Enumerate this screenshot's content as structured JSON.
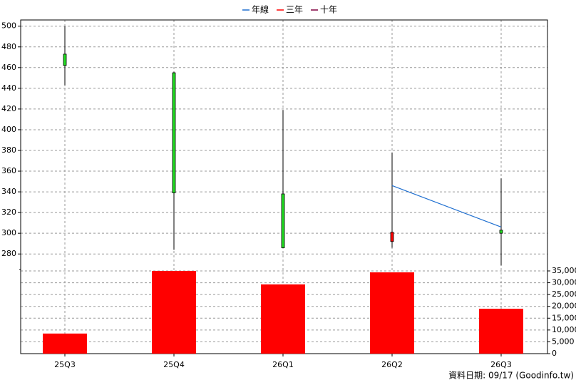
{
  "chart_data": {
    "type": "candlestick",
    "categories": [
      "25Q3",
      "25Q4",
      "26Q1",
      "26Q2",
      "26Q3"
    ],
    "open": [
      473,
      455,
      338,
      292,
      303
    ],
    "high": [
      500,
      456,
      419,
      378,
      353
    ],
    "low": [
      443,
      284,
      286,
      286,
      269
    ],
    "close": [
      462,
      339,
      286,
      301,
      300
    ],
    "up_color": "#ff0000",
    "down_color": "#22dd22",
    "series": [
      {
        "name": "年線",
        "color": "#1f6fd0",
        "values": [
          null,
          null,
          null,
          346,
          306
        ]
      },
      {
        "name": "三年",
        "color": "#ff0000",
        "values": [
          null,
          null,
          null,
          null,
          null
        ]
      },
      {
        "name": "十年",
        "color": "#800040",
        "values": [
          null,
          null,
          null,
          null,
          null
        ]
      }
    ],
    "ylim": [
      265,
      506
    ],
    "yticks": [
      280,
      300,
      320,
      340,
      360,
      380,
      400,
      420,
      440,
      460,
      480,
      500
    ],
    "grid": true,
    "volume": {
      "values": [
        8500,
        35000,
        29300,
        34400,
        19000
      ],
      "color": "#ff0000",
      "ylim": [
        0,
        35000
      ],
      "yticks": [
        0,
        {
          "value": 5000,
          "label": "5,000"
        },
        {
          "value": 10000,
          "label": "10,000"
        },
        {
          "value": 15000,
          "label": "15,000"
        },
        {
          "value": 20000,
          "label": "20,000"
        },
        {
          "value": 25000,
          "label": "25,000"
        },
        {
          "value": 30000,
          "label": "30,000"
        },
        {
          "value": 35000,
          "label": "35,000"
        }
      ]
    },
    "footnote": "資料日期: 09/17  (Goodinfo.tw)"
  }
}
